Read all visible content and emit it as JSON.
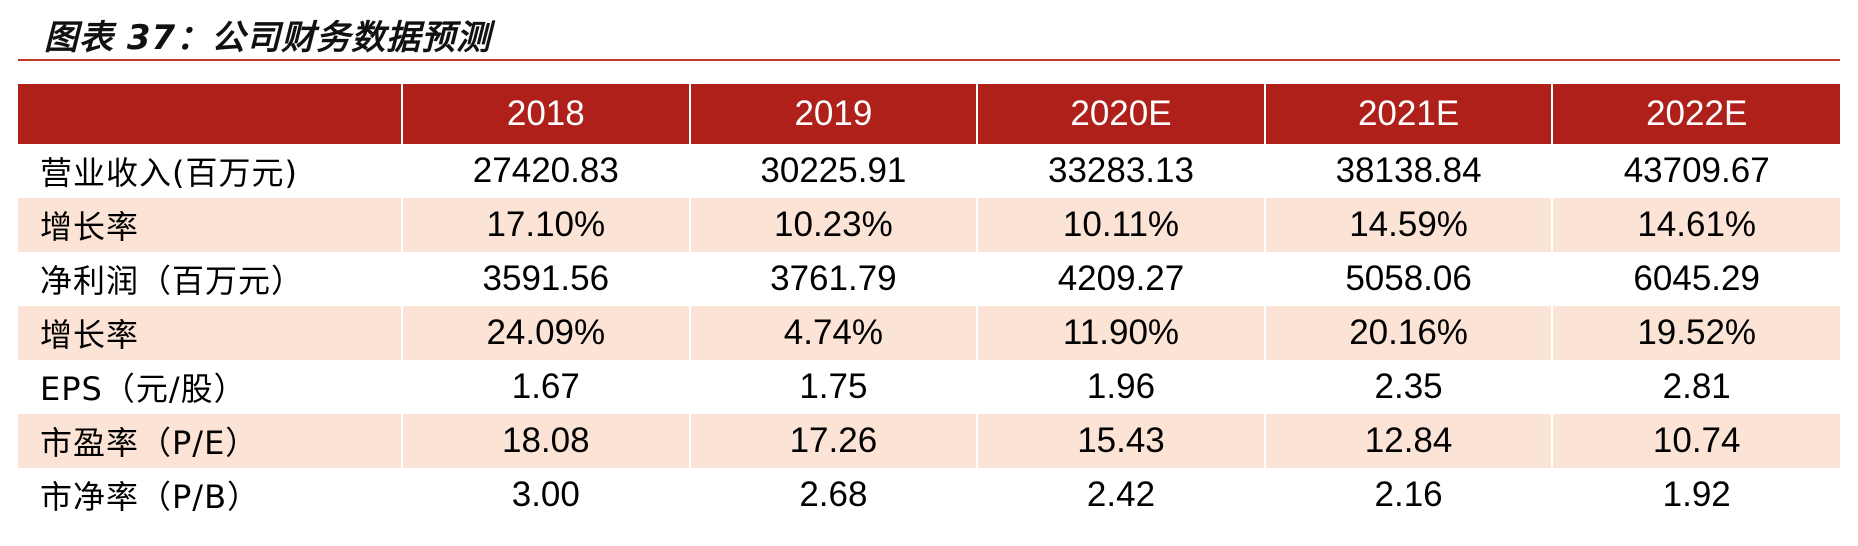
{
  "title": "图表 37：公司财务数据预测",
  "colors": {
    "header_bg": "#b0201b",
    "header_text": "#ffffff",
    "shaded_row": "#fbe3d6",
    "rule": "#c0392b"
  },
  "table": {
    "columns": [
      "",
      "2018",
      "2019",
      "2020E",
      "2021E",
      "2022E"
    ],
    "rows": [
      {
        "label": "营业收入(百万元)",
        "values": [
          "27420.83",
          "30225.91",
          "33283.13",
          "38138.84",
          "43709.67"
        ]
      },
      {
        "label": "增长率",
        "values": [
          "17.10%",
          "10.23%",
          "10.11%",
          "14.59%",
          "14.61%"
        ]
      },
      {
        "label": "净利润（百万元）",
        "values": [
          "3591.56",
          "3761.79",
          "4209.27",
          "5058.06",
          "6045.29"
        ]
      },
      {
        "label": "增长率",
        "values": [
          "24.09%",
          "4.74%",
          "11.90%",
          "20.16%",
          "19.52%"
        ]
      },
      {
        "label": "EPS（元/股）",
        "values": [
          "1.67",
          "1.75",
          "1.96",
          "2.35",
          "2.81"
        ]
      },
      {
        "label": "市盈率（P/E）",
        "values": [
          "18.08",
          "17.26",
          "15.43",
          "12.84",
          "10.74"
        ]
      },
      {
        "label": "市净率（P/B）",
        "values": [
          "3.00",
          "2.68",
          "2.42",
          "2.16",
          "1.92"
        ]
      }
    ]
  }
}
